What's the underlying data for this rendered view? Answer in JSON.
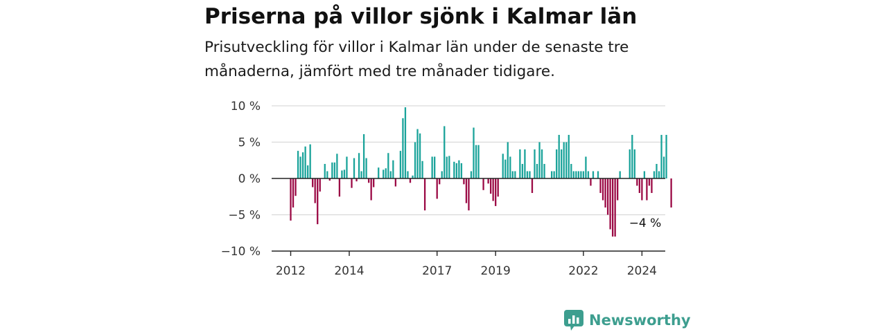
{
  "title": "Priserna på villor sjönk i Kalmar län",
  "subtitle": "Prisutveckling för villor i Kalmar län under de senaste tre månaderna, jämfört med tre månader tidigare.",
  "logo_text": "Newsworthy",
  "colors": {
    "positive": "#1aa39a",
    "negative": "#9b0a45",
    "grid": "#d9d9d9",
    "axis": "#222222",
    "brand": "#3d9e8f"
  },
  "chart_data": {
    "type": "bar",
    "title": "Priserna på villor sjönk i Kalmar län",
    "xlabel": "",
    "ylabel": "",
    "ylim": [
      -10,
      10
    ],
    "y_ticks": [
      10,
      5,
      0,
      -5,
      -10
    ],
    "y_tick_labels": [
      "10 %",
      "5 %",
      "0 %",
      "−5 %",
      "−10 %"
    ],
    "x_ticks": [
      2012,
      2014,
      2017,
      2019,
      2022,
      2024
    ],
    "x_tick_labels": [
      "2012",
      "2014",
      "2017",
      "2019",
      "2022",
      "2024"
    ],
    "x_start": "2012-01",
    "frequency": "monthly",
    "grid": true,
    "annotations": [
      {
        "text": "−4 %",
        "at_index": 156
      }
    ],
    "values": [
      -5.8,
      -4.0,
      -2.4,
      3.8,
      3.0,
      3.6,
      4.4,
      1.8,
      4.7,
      -1.2,
      -3.4,
      -6.3,
      -1.8,
      0.0,
      2.0,
      1.0,
      -0.3,
      2.2,
      2.2,
      3.4,
      -2.5,
      1.1,
      1.2,
      3.0,
      0.0,
      -1.3,
      2.8,
      -0.4,
      3.5,
      1.0,
      6.1,
      2.8,
      -0.6,
      -3.0,
      -1.2,
      0.0,
      1.5,
      0.0,
      1.2,
      1.4,
      3.5,
      1.0,
      2.5,
      -1.1,
      0.0,
      3.8,
      8.3,
      9.8,
      1.0,
      -0.6,
      0.4,
      5.0,
      6.8,
      6.2,
      2.4,
      -4.4,
      0.0,
      0.0,
      3.0,
      3.0,
      -2.8,
      -0.8,
      1.0,
      7.2,
      3.0,
      3.1,
      0.0,
      2.3,
      2.1,
      2.5,
      2.1,
      -0.8,
      -3.4,
      -4.4,
      1.0,
      7.0,
      4.6,
      4.6,
      0.0,
      -1.6,
      0.0,
      -0.7,
      -2.1,
      -3.1,
      -3.8,
      -2.5,
      0.0,
      3.4,
      2.6,
      5.0,
      3.0,
      1.0,
      1.0,
      0.0,
      4.0,
      2.0,
      4.0,
      1.0,
      1.0,
      -2.0,
      4.0,
      2.0,
      5.0,
      4.0,
      2.0,
      0.0,
      0.0,
      1.0,
      1.0,
      4.0,
      6.0,
      4.0,
      5.0,
      5.0,
      6.0,
      2.0,
      1.0,
      1.0,
      1.0,
      1.0,
      1.0,
      3.0,
      1.0,
      -1.0,
      1.0,
      0.0,
      1.0,
      -2.0,
      -3.0,
      -4.0,
      -5.0,
      -7.0,
      -8.0,
      -8.0,
      -3.0,
      1.0,
      0.0,
      0.0,
      0.0,
      4.0,
      6.0,
      4.0,
      -1.0,
      -2.0,
      -3.0,
      1.0,
      -3.0,
      -1.0,
      -2.0,
      1.0,
      2.0,
      1.0,
      6.0,
      3.0,
      6.0,
      0.0,
      -4.0
    ]
  }
}
